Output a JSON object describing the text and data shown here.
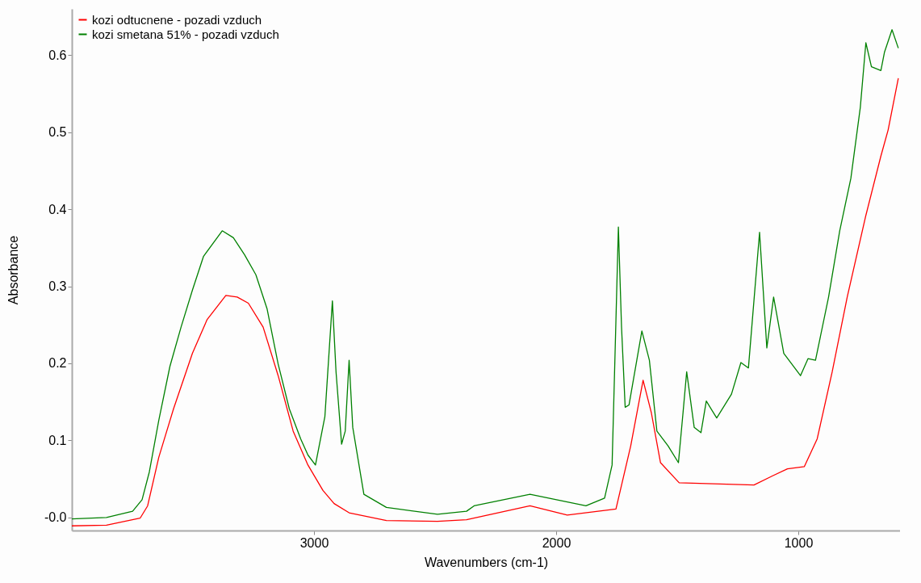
{
  "chart_data": {
    "type": "line",
    "xlabel": "Wavenumbers (cm-1)",
    "ylabel": "Absorbance",
    "xlim": [
      4000,
      580
    ],
    "xticks": [
      3000,
      2000,
      1000
    ],
    "ylim": [
      -0.017,
      0.66
    ],
    "yticks": [
      {
        "value": 0,
        "label": "-0.0"
      },
      0.1,
      0.2,
      0.3,
      0.4,
      0.5,
      0.6
    ],
    "grid": false,
    "legend": "top left",
    "marker": "none",
    "series": [
      {
        "name": "kozi odtucnene - pozadi vzduch",
        "color": "#ff0000",
        "x": [
          4000,
          3857,
          3718,
          3687,
          3641,
          3580,
          3502,
          3441,
          3364,
          3317,
          3271,
          3210,
          3148,
          3086,
          3025,
          2963,
          2917,
          2855,
          2701,
          2490,
          2370,
          2108,
          1954,
          1753,
          1692,
          1641,
          1607,
          1569,
          1492,
          1183,
          1106,
          1045,
          975,
          922,
          860,
          798,
          721,
          659,
          629,
          587
        ],
        "values": [
          -0.011,
          -0.01,
          -0.001,
          0.015,
          0.078,
          0.141,
          0.213,
          0.257,
          0.288,
          0.286,
          0.278,
          0.247,
          0.184,
          0.112,
          0.068,
          0.035,
          0.018,
          0.006,
          -0.004,
          -0.005,
          -0.003,
          0.015,
          0.003,
          0.011,
          0.093,
          0.178,
          0.136,
          0.071,
          0.045,
          0.042,
          0.054,
          0.063,
          0.066,
          0.102,
          0.189,
          0.286,
          0.392,
          0.469,
          0.503,
          0.57
        ]
      },
      {
        "name": "kozi smetana 51% - pozadi vzduch",
        "color": "#008000",
        "x": [
          4000,
          3857,
          3749,
          3710,
          3680,
          3641,
          3595,
          3549,
          3502,
          3456,
          3379,
          3333,
          3287,
          3240,
          3194,
          3148,
          3102,
          3055,
          3025,
          2994,
          2955,
          2924,
          2909,
          2886,
          2871,
          2855,
          2840,
          2794,
          2701,
          2490,
          2370,
          2339,
          2108,
          1877,
          1800,
          1769,
          1753,
          1743,
          1730,
          1715,
          1699,
          1646,
          1615,
          1584,
          1538,
          1495,
          1476,
          1461,
          1430,
          1402,
          1380,
          1337,
          1276,
          1237,
          1206,
          1160,
          1130,
          1102,
          1060,
          991,
          960,
          929,
          875,
          829,
          783,
          744,
          721,
          698,
          659,
          644,
          613,
          587
        ],
        "values": [
          -0.002,
          0.0,
          0.008,
          0.023,
          0.059,
          0.126,
          0.196,
          0.247,
          0.295,
          0.339,
          0.372,
          0.363,
          0.341,
          0.315,
          0.271,
          0.199,
          0.141,
          0.102,
          0.081,
          0.068,
          0.131,
          0.281,
          0.189,
          0.095,
          0.112,
          0.204,
          0.117,
          0.03,
          0.013,
          0.004,
          0.008,
          0.015,
          0.03,
          0.015,
          0.025,
          0.068,
          0.257,
          0.377,
          0.247,
          0.143,
          0.146,
          0.242,
          0.204,
          0.112,
          0.093,
          0.071,
          0.136,
          0.189,
          0.117,
          0.11,
          0.151,
          0.129,
          0.16,
          0.201,
          0.194,
          0.37,
          0.22,
          0.286,
          0.213,
          0.184,
          0.206,
          0.204,
          0.286,
          0.372,
          0.44,
          0.532,
          0.616,
          0.585,
          0.58,
          0.604,
          0.633,
          0.609
        ]
      }
    ]
  }
}
